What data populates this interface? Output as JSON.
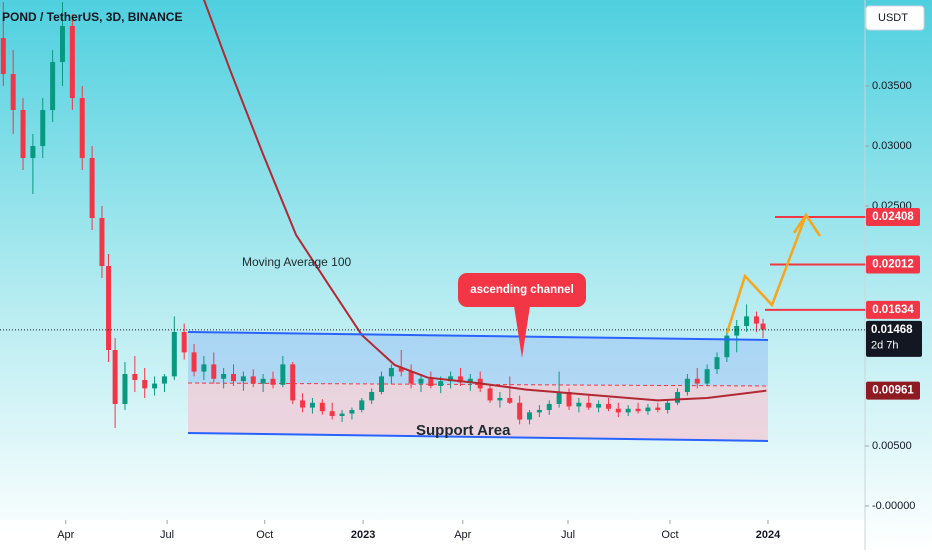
{
  "chart_data": {
    "type": "candlestick",
    "title": "POND / TetherUS, 3D, BINANCE",
    "currency": "USDT",
    "xlim": [
      0,
      263
    ],
    "ylim": [
      -0.00117,
      0.04217
    ],
    "xticks": [
      {
        "value": 20,
        "label": "Apr"
      },
      {
        "value": 50.8,
        "label": "Jul"
      },
      {
        "value": 80.5,
        "label": "Oct"
      },
      {
        "value": 110.4,
        "label": "2023"
      },
      {
        "value": 140.7,
        "label": "Apr"
      },
      {
        "value": 172.7,
        "label": "Jul"
      },
      {
        "value": 203.7,
        "label": "Oct"
      },
      {
        "value": 233.5,
        "label": "2024"
      }
    ],
    "yticks": [
      {
        "value": 0.035,
        "label": "0.03500"
      },
      {
        "value": 0.03,
        "label": "0.03000"
      },
      {
        "value": 0.025,
        "label": "0.02500"
      },
      {
        "value": 0.005,
        "label": "0.00500"
      },
      {
        "value": 0,
        "label": "-0.00000"
      }
    ],
    "up_color": "#089981",
    "down_color": "#f23645",
    "candles": {
      "x": [
        1,
        4,
        7,
        10,
        13,
        16,
        19,
        22,
        25,
        28,
        31,
        33,
        35,
        38,
        41,
        44,
        47,
        50,
        53,
        56,
        59,
        62,
        65,
        68,
        71,
        74,
        77,
        80,
        83,
        86,
        89,
        92,
        95,
        98,
        101,
        104,
        107,
        110,
        113,
        116,
        119,
        122,
        125,
        128,
        131,
        134,
        137,
        140,
        143,
        146,
        149,
        152,
        155,
        158,
        161,
        164,
        167,
        170,
        173,
        176,
        179,
        182,
        185,
        188,
        191,
        194,
        197,
        200,
        203,
        206,
        209,
        212,
        215,
        218,
        221,
        224,
        227,
        230,
        232
      ],
      "open": [
        0.039,
        0.036,
        0.033,
        0.029,
        0.03,
        0.033,
        0.037,
        0.04,
        0.034,
        0.029,
        0.024,
        0.02,
        0.013,
        0.0085,
        0.011,
        0.0105,
        0.0098,
        0.0102,
        0.0108,
        0.0145,
        0.0128,
        0.0112,
        0.0118,
        0.0106,
        0.011,
        0.0104,
        0.0108,
        0.0102,
        0.0106,
        0.0101,
        0.0118,
        0.0088,
        0.0082,
        0.0086,
        0.0079,
        0.0075,
        0.0077,
        0.008,
        0.0088,
        0.0095,
        0.0108,
        0.0115,
        0.0112,
        0.0102,
        0.0106,
        0.01,
        0.0104,
        0.0108,
        0.0103,
        0.0106,
        0.0098,
        0.0088,
        0.009,
        0.0086,
        0.0072,
        0.0078,
        0.008,
        0.0085,
        0.0095,
        0.0083,
        0.0086,
        0.0082,
        0.0085,
        0.0081,
        0.0078,
        0.0081,
        0.0079,
        0.0082,
        0.008,
        0.0086,
        0.0095,
        0.0106,
        0.0102,
        0.0114,
        0.0124,
        0.0142,
        0.015,
        0.0158,
        0.0152
      ],
      "high": [
        0.042,
        0.038,
        0.034,
        0.031,
        0.034,
        0.038,
        0.042,
        0.041,
        0.035,
        0.03,
        0.025,
        0.021,
        0.014,
        0.012,
        0.0125,
        0.0115,
        0.0108,
        0.011,
        0.0158,
        0.0152,
        0.0135,
        0.0125,
        0.0128,
        0.0115,
        0.0118,
        0.0112,
        0.0114,
        0.011,
        0.0112,
        0.0125,
        0.012,
        0.0094,
        0.009,
        0.0089,
        0.0086,
        0.008,
        0.0082,
        0.009,
        0.0098,
        0.0112,
        0.0118,
        0.013,
        0.0118,
        0.011,
        0.0112,
        0.0108,
        0.0112,
        0.0115,
        0.011,
        0.0112,
        0.0102,
        0.0095,
        0.0108,
        0.0092,
        0.008,
        0.0084,
        0.0088,
        0.0112,
        0.0098,
        0.009,
        0.0092,
        0.0088,
        0.009,
        0.0086,
        0.0084,
        0.0086,
        0.0085,
        0.0086,
        0.0088,
        0.0098,
        0.011,
        0.0115,
        0.0118,
        0.0128,
        0.0148,
        0.0155,
        0.0168,
        0.0162,
        0.0156
      ],
      "low": [
        0.035,
        0.031,
        0.028,
        0.026,
        0.029,
        0.032,
        0.035,
        0.033,
        0.028,
        0.023,
        0.019,
        0.012,
        0.0065,
        0.008,
        0.0095,
        0.009,
        0.0092,
        0.0095,
        0.0105,
        0.0122,
        0.0108,
        0.0105,
        0.0102,
        0.0098,
        0.01,
        0.0096,
        0.0099,
        0.0095,
        0.0098,
        0.0099,
        0.0085,
        0.0078,
        0.0077,
        0.0076,
        0.0072,
        0.007,
        0.0072,
        0.0078,
        0.0085,
        0.0093,
        0.0102,
        0.0108,
        0.0098,
        0.0095,
        0.0098,
        0.0094,
        0.0098,
        0.01,
        0.0096,
        0.0095,
        0.0086,
        0.0082,
        0.0085,
        0.0068,
        0.0068,
        0.0074,
        0.0076,
        0.0082,
        0.008,
        0.0078,
        0.008,
        0.0078,
        0.0079,
        0.0074,
        0.0075,
        0.0077,
        0.0076,
        0.0078,
        0.0077,
        0.0084,
        0.0092,
        0.0098,
        0.01,
        0.011,
        0.012,
        0.0128,
        0.0145,
        0.0145,
        0.014
      ],
      "close": [
        0.036,
        0.033,
        0.029,
        0.03,
        0.033,
        0.037,
        0.04,
        0.034,
        0.029,
        0.024,
        0.02,
        0.013,
        0.0085,
        0.011,
        0.0105,
        0.0098,
        0.0102,
        0.0108,
        0.0145,
        0.0128,
        0.0112,
        0.0118,
        0.0106,
        0.011,
        0.0104,
        0.0108,
        0.0102,
        0.0106,
        0.0101,
        0.0118,
        0.0088,
        0.0082,
        0.0086,
        0.0079,
        0.0075,
        0.0077,
        0.008,
        0.0088,
        0.0095,
        0.0108,
        0.0115,
        0.0112,
        0.0102,
        0.0106,
        0.01,
        0.0104,
        0.0108,
        0.0103,
        0.0106,
        0.0098,
        0.0088,
        0.009,
        0.0086,
        0.0072,
        0.0078,
        0.008,
        0.0085,
        0.0095,
        0.0083,
        0.0086,
        0.0082,
        0.0085,
        0.0081,
        0.0078,
        0.0081,
        0.0079,
        0.0082,
        0.008,
        0.0086,
        0.0095,
        0.0106,
        0.0102,
        0.0114,
        0.0124,
        0.0142,
        0.015,
        0.0158,
        0.0152,
        0.0147
      ]
    },
    "moving_average": {
      "name": "Moving Average 100",
      "color": "#b22833",
      "x": [
        62,
        70,
        80,
        90,
        100,
        110,
        120,
        130,
        145,
        160,
        180,
        200,
        215,
        233
      ],
      "values": [
        0.0422,
        0.0363,
        0.0293,
        0.0226,
        0.0184,
        0.01425,
        0.01175,
        0.0107,
        0.01025,
        0.0097,
        0.00925,
        0.0088,
        0.009,
        0.00961
      ]
    },
    "levels": [
      0.02408,
      0.02012,
      0.01634
    ],
    "level_color": "#f23645",
    "last_price": 0.01468,
    "countdown": "2d 7h",
    "ma_last": 0.00961,
    "annotations": [
      "ascending channel",
      "Support Area"
    ]
  }
}
